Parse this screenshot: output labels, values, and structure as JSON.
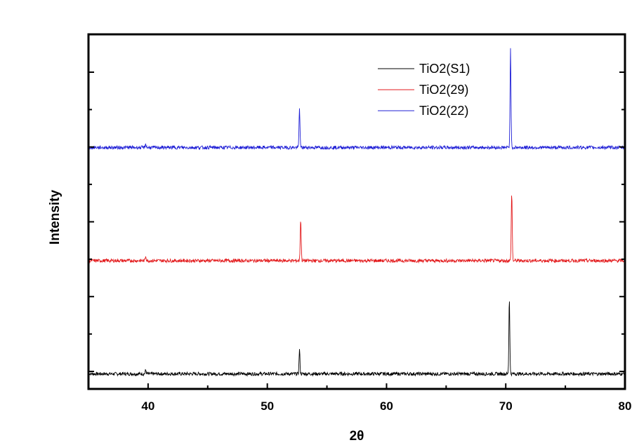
{
  "chart_data": {
    "type": "line",
    "xlabel": "2θ",
    "ylabel": "Intensity",
    "xlim": [
      35,
      80
    ],
    "xticks": [
      40,
      50,
      60,
      70,
      80
    ],
    "y_tick_labels": "none",
    "legend_position": "top-center",
    "series": [
      {
        "name": "TiO2(S1)",
        "color": "#000000",
        "baseline_offset": 0,
        "peaks": [
          {
            "x": 39.8,
            "height": 1.0
          },
          {
            "x": 52.7,
            "height": 6.4
          },
          {
            "x": 70.3,
            "height": 20.0
          }
        ]
      },
      {
        "name": "TiO2(29)",
        "color": "#e31a1c",
        "baseline_offset": 30,
        "peaks": [
          {
            "x": 39.8,
            "height": 1.3
          },
          {
            "x": 52.8,
            "height": 11.0
          },
          {
            "x": 70.5,
            "height": 18.0
          }
        ]
      },
      {
        "name": "TiO2(22)",
        "color": "#1f1fd6",
        "baseline_offset": 60,
        "peaks": [
          {
            "x": 39.8,
            "height": 1.0
          },
          {
            "x": 52.7,
            "height": 10.5
          },
          {
            "x": 70.4,
            "height": 26.0
          }
        ]
      }
    ],
    "ylim": [
      -4,
      90
    ]
  }
}
